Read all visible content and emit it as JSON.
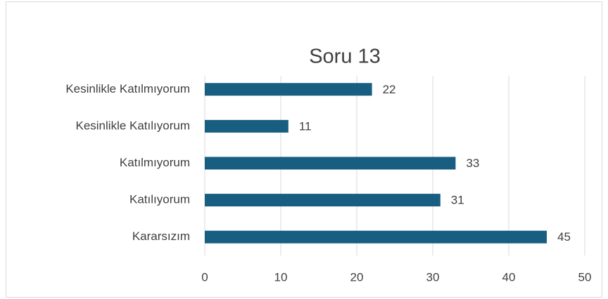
{
  "chart_data": {
    "type": "bar",
    "orientation": "horizontal",
    "title": "Soru 13",
    "categories": [
      "Kesinlikle Katılmıyorum",
      "Kesinlikle Katılıyorum",
      "Katılmıyorum",
      "Katılıyorum",
      "Kararsızım"
    ],
    "values": [
      22,
      11,
      33,
      31,
      45
    ],
    "color": "#175e80",
    "xlim": [
      0,
      50
    ],
    "xticks": [
      0,
      10,
      20,
      30,
      40,
      50
    ],
    "grid": true
  }
}
